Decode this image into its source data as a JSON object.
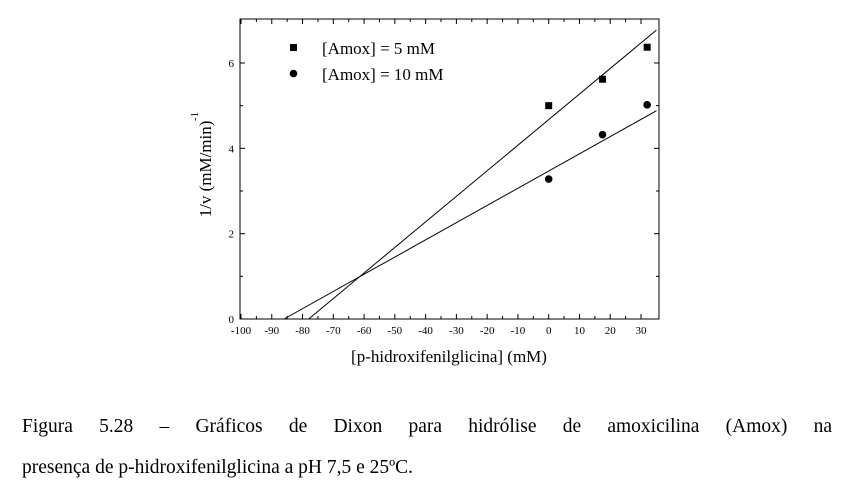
{
  "chart_data": {
    "type": "scatter",
    "title": "",
    "xlabel": "[p-hidroxifenilglicina] (mM)",
    "ylabel_main": "1/v (mM/min)",
    "ylabel_exponent": "-1",
    "xlim": [
      -100,
      35
    ],
    "ylim": [
      0,
      7
    ],
    "x_ticks": [
      -100,
      -90,
      -80,
      -70,
      -60,
      -50,
      -40,
      -30,
      -20,
      -10,
      0,
      10,
      20,
      30
    ],
    "y_ticks": [
      0,
      2,
      4,
      6
    ],
    "grid": false,
    "legend_position": "top-left",
    "series": [
      {
        "name": "[Amox] = 5 mM",
        "marker": "square",
        "x": [
          0,
          17.5,
          32
        ],
        "y": [
          5.0,
          5.62,
          6.37
        ],
        "fit_line": {
          "x": [
            -78,
            35
          ],
          "y": [
            0,
            6.77
          ]
        }
      },
      {
        "name": "[Amox] = 10 mM",
        "marker": "circle",
        "x": [
          0,
          17.5,
          32
        ],
        "y": [
          3.28,
          4.32,
          5.02
        ],
        "fit_line": {
          "x": [
            -86,
            35
          ],
          "y": [
            0,
            4.88
          ]
        }
      }
    ]
  },
  "caption": {
    "line1": "Figura 5.28 – Gráficos de Dixon para hidrólise de amoxicilina (Amox) na",
    "line2": "presença de p-hidroxifenilglicina a pH 7,5 e 25ºC."
  }
}
